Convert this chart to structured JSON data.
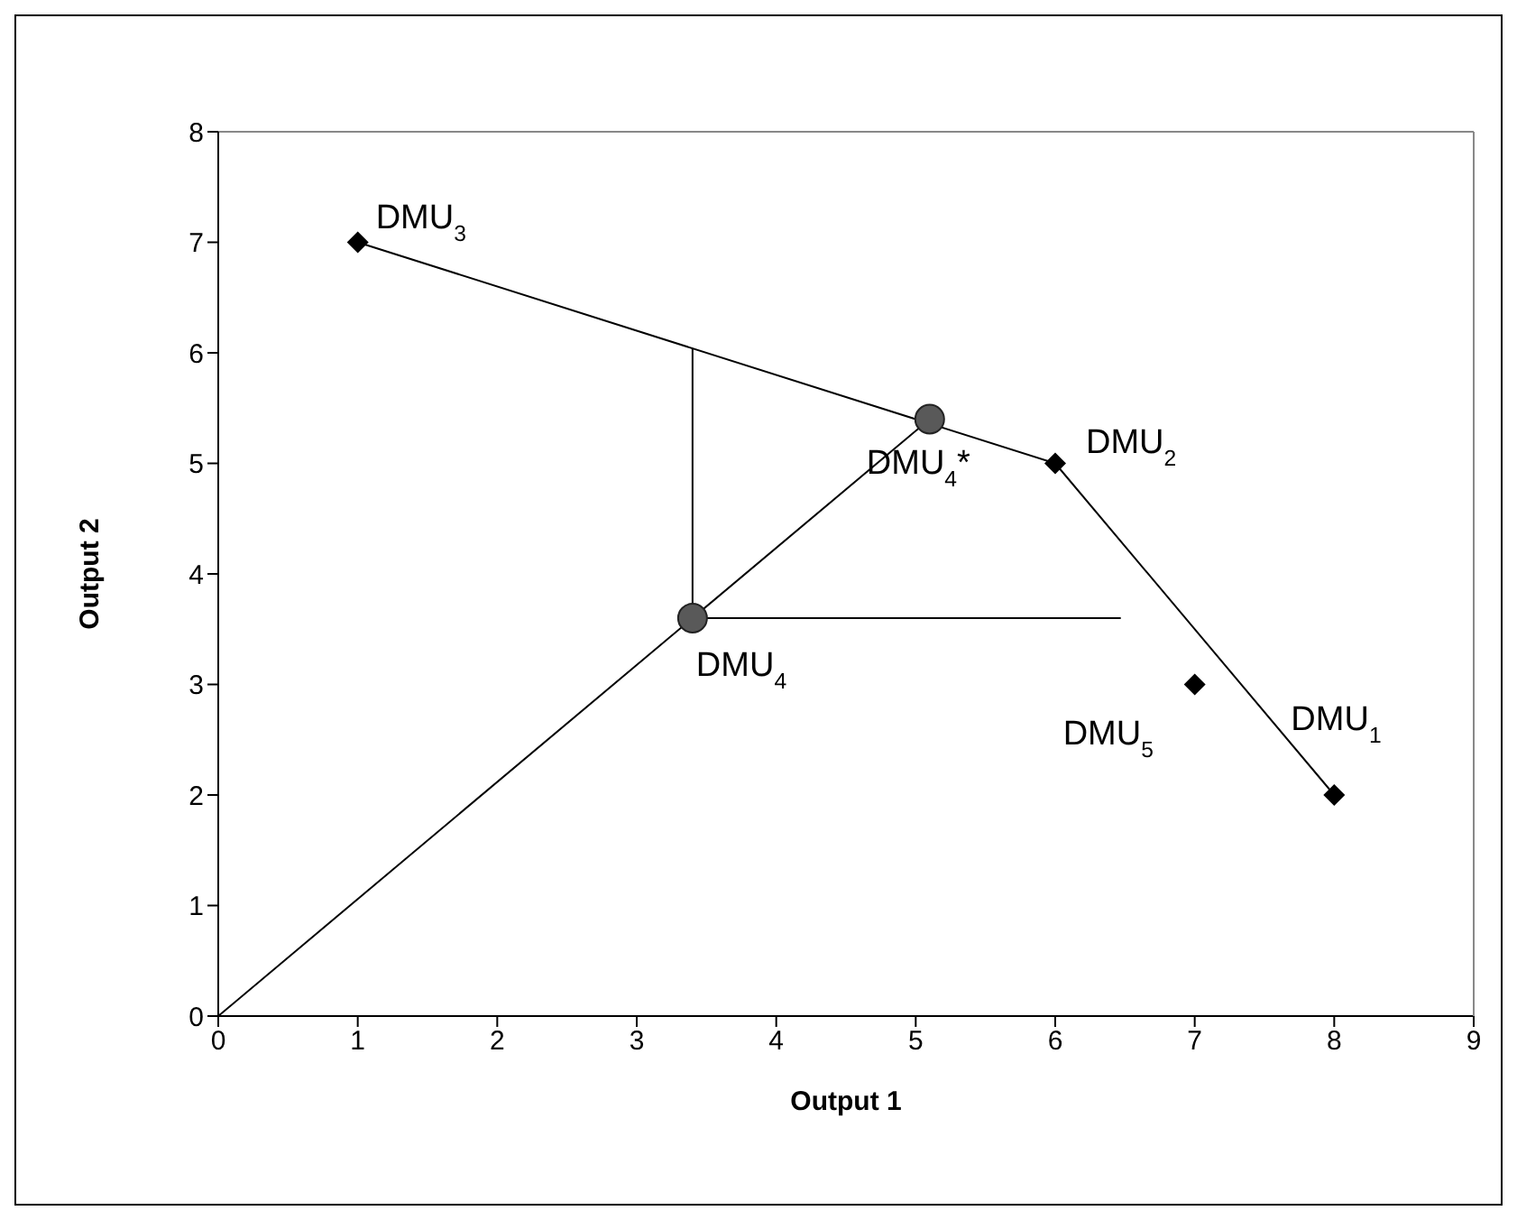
{
  "chart_data": {
    "type": "scatter",
    "xlabel": "Output 1",
    "ylabel": "Output 2",
    "xlim": [
      0,
      9
    ],
    "ylim": [
      0,
      8
    ],
    "xticks": [
      0,
      1,
      2,
      3,
      4,
      5,
      6,
      7,
      8,
      9
    ],
    "yticks": [
      0,
      1,
      2,
      3,
      4,
      5,
      6,
      7,
      8
    ],
    "marker": "none",
    "line_style": "solid",
    "series": [
      {
        "type": "line",
        "color": "#000000",
        "x": [
          1,
          6,
          8
        ],
        "values": [
          7,
          5,
          2
        ]
      },
      {
        "type": "line",
        "color": "#000000",
        "x": [
          0,
          5.1
        ],
        "values": [
          0,
          5.4
        ]
      },
      {
        "type": "line",
        "color": "#000000",
        "x": [
          3.4,
          3.4
        ],
        "values": [
          3.6,
          6.04
        ]
      },
      {
        "type": "line",
        "color": "#000000",
        "x": [
          3.4,
          6.47
        ],
        "values": [
          3.6,
          3.6
        ]
      },
      {
        "marker": "diamond",
        "color": "#000000",
        "x": [
          1,
          6,
          7,
          8
        ],
        "values": [
          7,
          5,
          3,
          2
        ]
      },
      {
        "marker": "circle",
        "color": "#595959",
        "x": [
          3.4,
          5.1
        ],
        "values": [
          3.6,
          5.4
        ]
      }
    ],
    "annotations": [
      {
        "text": "DMU$_{3}$",
        "x": 1,
        "y": 7
      },
      {
        "text": "DMU$_{2}$",
        "x": 6,
        "y": 5
      },
      {
        "text": "DMU$_{4}$*",
        "x": 5.1,
        "y": 5.4
      },
      {
        "text": "DMU$_{4}$",
        "x": 3.4,
        "y": 3.6
      },
      {
        "text": "DMU$_{5}$",
        "x": 7,
        "y": 3
      },
      {
        "text": "DMU$_{1}$",
        "x": 8,
        "y": 2
      }
    ]
  }
}
